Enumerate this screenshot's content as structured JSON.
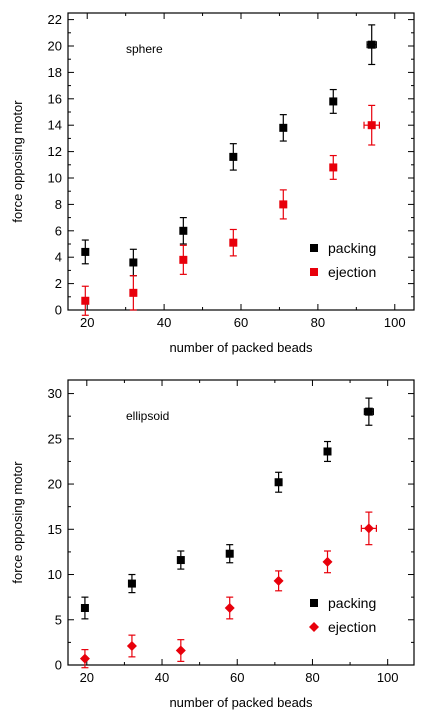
{
  "chart_data": [
    {
      "type": "scatter",
      "annotation": "sphere",
      "xlabel": "number of packed beads",
      "ylabel": "force opposing motor",
      "xlim": [
        15,
        105
      ],
      "ylim": [
        0,
        22.5
      ],
      "xticks": [
        20,
        40,
        60,
        80,
        100
      ],
      "yticks": [
        0,
        2,
        4,
        6,
        8,
        10,
        12,
        14,
        16,
        18,
        20,
        22
      ],
      "legend_position": "bottom-right",
      "series": [
        {
          "name": "packing",
          "color": "#000000",
          "marker": "square",
          "points": [
            {
              "x": 19.5,
              "y": 4.4,
              "yerr": 0.9,
              "xerr": 0
            },
            {
              "x": 32,
              "y": 3.6,
              "yerr": 1.0,
              "xerr": 0
            },
            {
              "x": 45,
              "y": 6.0,
              "yerr": 1.0,
              "xerr": 0
            },
            {
              "x": 58,
              "y": 11.6,
              "yerr": 1.0,
              "xerr": 0
            },
            {
              "x": 71,
              "y": 13.8,
              "yerr": 1.0,
              "xerr": 0
            },
            {
              "x": 84,
              "y": 15.8,
              "yerr": 0.9,
              "xerr": 0
            },
            {
              "x": 94,
              "y": 20.1,
              "yerr": 1.5,
              "xerr": 1.2
            }
          ]
        },
        {
          "name": "ejection",
          "color": "#e8000b",
          "marker": "square",
          "points": [
            {
              "x": 19.5,
              "y": 0.7,
              "yerr": 1.1,
              "xerr": 0
            },
            {
              "x": 32,
              "y": 1.3,
              "yerr": 1.3,
              "xerr": 0
            },
            {
              "x": 45,
              "y": 3.8,
              "yerr": 1.1,
              "xerr": 0
            },
            {
              "x": 58,
              "y": 5.1,
              "yerr": 1.0,
              "xerr": 0
            },
            {
              "x": 71,
              "y": 8.0,
              "yerr": 1.1,
              "xerr": 0
            },
            {
              "x": 84,
              "y": 10.8,
              "yerr": 0.9,
              "xerr": 0
            },
            {
              "x": 94,
              "y": 14.0,
              "yerr": 1.5,
              "xerr": 2.0
            }
          ]
        }
      ]
    },
    {
      "type": "scatter",
      "annotation": "ellipsoid",
      "xlabel": "number of packed beads",
      "ylabel": "force opposing motor",
      "xlim": [
        15,
        107
      ],
      "ylim": [
        0,
        31.5
      ],
      "xticks": [
        20,
        40,
        60,
        80,
        100
      ],
      "yticks": [
        0,
        5,
        10,
        15,
        20,
        25,
        30
      ],
      "legend_position": "bottom-right",
      "series": [
        {
          "name": "packing",
          "color": "#000000",
          "marker": "square",
          "points": [
            {
              "x": 19.5,
              "y": 6.3,
              "yerr": 1.2,
              "xerr": 0
            },
            {
              "x": 32,
              "y": 9.0,
              "yerr": 1.0,
              "xerr": 0
            },
            {
              "x": 45,
              "y": 11.6,
              "yerr": 1.0,
              "xerr": 0
            },
            {
              "x": 58,
              "y": 12.3,
              "yerr": 1.0,
              "xerr": 0
            },
            {
              "x": 71,
              "y": 20.2,
              "yerr": 1.1,
              "xerr": 0
            },
            {
              "x": 84,
              "y": 23.6,
              "yerr": 1.1,
              "xerr": 0
            },
            {
              "x": 95,
              "y": 28.0,
              "yerr": 1.5,
              "xerr": 1.2
            }
          ]
        },
        {
          "name": "ejection",
          "color": "#e8000b",
          "marker": "diamond",
          "points": [
            {
              "x": 19.5,
              "y": 0.7,
              "yerr": 1.0,
              "xerr": 0
            },
            {
              "x": 32,
              "y": 2.1,
              "yerr": 1.2,
              "xerr": 0
            },
            {
              "x": 45,
              "y": 1.6,
              "yerr": 1.2,
              "xerr": 0
            },
            {
              "x": 58,
              "y": 6.3,
              "yerr": 1.2,
              "xerr": 0
            },
            {
              "x": 71,
              "y": 9.3,
              "yerr": 1.1,
              "xerr": 0
            },
            {
              "x": 84,
              "y": 11.4,
              "yerr": 1.2,
              "xerr": 0
            },
            {
              "x": 95,
              "y": 15.1,
              "yerr": 1.8,
              "xerr": 2.0
            }
          ]
        }
      ]
    }
  ]
}
